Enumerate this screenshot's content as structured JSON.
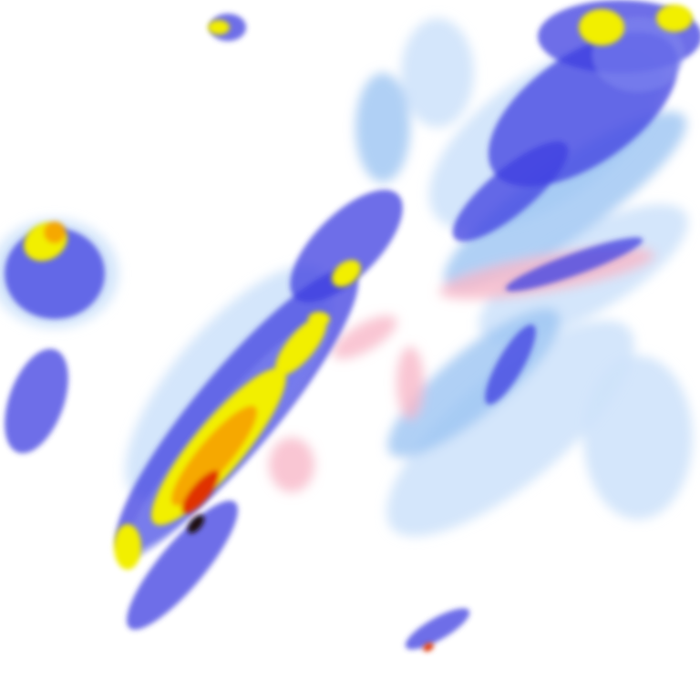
{
  "map": {
    "layer": "precipitation-radar",
    "palette": {
      "very_light": "#cfe3fb",
      "light": "#9cc4f2",
      "light_moderate": "#7f86ee",
      "moderate": "#3e3ee0",
      "heavy": "#f2ef00",
      "very_heavy": "#f6a800",
      "intense": "#e03000",
      "extreme": "#1a0a0a",
      "mixed": "#f7b8c8"
    }
  }
}
